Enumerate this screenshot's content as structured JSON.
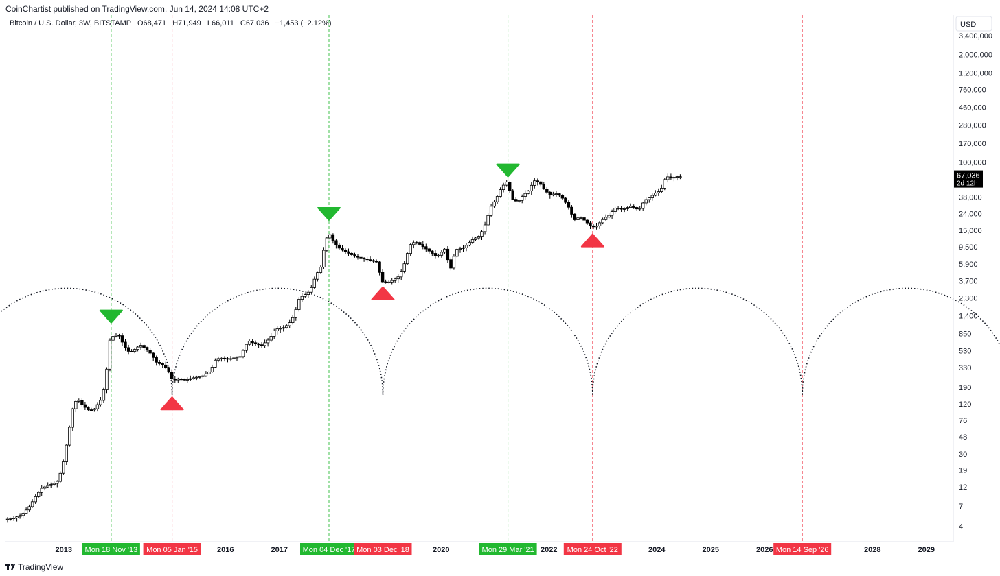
{
  "header": {
    "publisher": "CoinChartist published on TradingView.com, Jun 14, 2024 14:08 UTC+2"
  },
  "footer": {
    "brand": "TradingView",
    "logo_icon": "tradingview-logo-icon"
  },
  "chart_data": {
    "type": "candlestick",
    "title": "Bitcoin / U.S. Dollar, 3W, BITSTAMP",
    "ohlc_text": {
      "open": "O68,471",
      "high": "H71,949",
      "low": "L66,011",
      "close": "C67,036",
      "change": "−1,453 (−2.12%)"
    },
    "currency": "USD",
    "price_scale": "log",
    "x_range": [
      2011.92,
      2029.5
    ],
    "y_range": [
      2.6,
      6000000
    ],
    "y_ticks": [
      "3,400,000",
      "2,000,000",
      "1,200,000",
      "760,000",
      "460,000",
      "280,000",
      "170,000",
      "100,000",
      "38,000",
      "24,000",
      "15,000",
      "9,500",
      "5,900",
      "3,700",
      "2,300",
      "1,400",
      "850",
      "530",
      "330",
      "190",
      "120",
      "76",
      "48",
      "30",
      "19",
      "12",
      "7",
      "4"
    ],
    "x_ticks": [
      {
        "label": "2013",
        "x": 2013.0
      },
      {
        "label": "2016",
        "x": 2016.0
      },
      {
        "label": "2017",
        "x": 2017.0
      },
      {
        "label": "2020",
        "x": 2020.0
      },
      {
        "label": "2022",
        "x": 2022.0
      },
      {
        "label": "2024",
        "x": 2024.0
      },
      {
        "label": "2025",
        "x": 2025.0
      },
      {
        "label": "2026",
        "x": 2026.0
      },
      {
        "label": "2028",
        "x": 2028.0
      },
      {
        "label": "2029",
        "x": 2029.0
      }
    ],
    "last_price": {
      "value": 67036,
      "label": "67,036",
      "countdown": "2d 12h"
    },
    "cycle_markers": [
      {
        "date_label": "Mon 18 Nov '13",
        "x": 2013.88,
        "kind": "top",
        "price": 1150,
        "color": "#22b830"
      },
      {
        "date_label": "Mon 05 Jan '15",
        "x": 2015.01,
        "kind": "bottom",
        "price": 145,
        "color": "#f23645"
      },
      {
        "date_label": "Mon 04 Dec '17",
        "x": 2017.92,
        "kind": "top",
        "price": 20000,
        "color": "#22b830"
      },
      {
        "date_label": "Mon 03 Dec '18",
        "x": 2018.92,
        "kind": "bottom",
        "price": 3100,
        "color": "#f23645"
      },
      {
        "date_label": "Mon 29 Mar '21",
        "x": 2021.24,
        "kind": "top",
        "price": 67000,
        "color": "#22b830"
      },
      {
        "date_label": "Mon 24 Oct '22",
        "x": 2022.81,
        "kind": "bottom",
        "price": 13500,
        "color": "#f23645"
      },
      {
        "date_label": "Mon 14 Sep '26",
        "x": 2026.7,
        "kind": "projection",
        "color": "#f23645"
      }
    ],
    "cycle_arcs": {
      "bottoms": [
        2011.1,
        2015.01,
        2018.92,
        2022.81,
        2026.7
      ],
      "peak_price": 3000,
      "trough_price": 155
    },
    "price_path": [
      {
        "x": 2011.93,
        "p": 4.8
      },
      {
        "x": 2012.1,
        "p": 5.0
      },
      {
        "x": 2012.25,
        "p": 5.5
      },
      {
        "x": 2012.4,
        "p": 7.0
      },
      {
        "x": 2012.5,
        "p": 9.0
      },
      {
        "x": 2012.62,
        "p": 11.5
      },
      {
        "x": 2012.75,
        "p": 12.5
      },
      {
        "x": 2012.9,
        "p": 13.5
      },
      {
        "x": 2013.0,
        "p": 20
      },
      {
        "x": 2013.1,
        "p": 45
      },
      {
        "x": 2013.2,
        "p": 110
      },
      {
        "x": 2013.28,
        "p": 140
      },
      {
        "x": 2013.38,
        "p": 115
      },
      {
        "x": 2013.5,
        "p": 100
      },
      {
        "x": 2013.6,
        "p": 105
      },
      {
        "x": 2013.72,
        "p": 135
      },
      {
        "x": 2013.8,
        "p": 210
      },
      {
        "x": 2013.88,
        "p": 700
      },
      {
        "x": 2013.95,
        "p": 800
      },
      {
        "x": 2014.05,
        "p": 820
      },
      {
        "x": 2014.15,
        "p": 600
      },
      {
        "x": 2014.25,
        "p": 500
      },
      {
        "x": 2014.35,
        "p": 550
      },
      {
        "x": 2014.45,
        "p": 620
      },
      {
        "x": 2014.55,
        "p": 560
      },
      {
        "x": 2014.65,
        "p": 480
      },
      {
        "x": 2014.75,
        "p": 380
      },
      {
        "x": 2014.85,
        "p": 360
      },
      {
        "x": 2014.95,
        "p": 320
      },
      {
        "x": 2015.05,
        "p": 230
      },
      {
        "x": 2015.15,
        "p": 240
      },
      {
        "x": 2015.3,
        "p": 235
      },
      {
        "x": 2015.45,
        "p": 250
      },
      {
        "x": 2015.6,
        "p": 260
      },
      {
        "x": 2015.75,
        "p": 300
      },
      {
        "x": 2015.85,
        "p": 420
      },
      {
        "x": 2015.95,
        "p": 430
      },
      {
        "x": 2016.1,
        "p": 420
      },
      {
        "x": 2016.3,
        "p": 450
      },
      {
        "x": 2016.45,
        "p": 700
      },
      {
        "x": 2016.55,
        "p": 650
      },
      {
        "x": 2016.7,
        "p": 610
      },
      {
        "x": 2016.85,
        "p": 740
      },
      {
        "x": 2016.95,
        "p": 960
      },
      {
        "x": 2017.1,
        "p": 1000
      },
      {
        "x": 2017.2,
        "p": 1100
      },
      {
        "x": 2017.3,
        "p": 1400
      },
      {
        "x": 2017.4,
        "p": 2300
      },
      {
        "x": 2017.5,
        "p": 2500
      },
      {
        "x": 2017.6,
        "p": 2800
      },
      {
        "x": 2017.7,
        "p": 4200
      },
      {
        "x": 2017.8,
        "p": 5500
      },
      {
        "x": 2017.88,
        "p": 11000
      },
      {
        "x": 2017.95,
        "p": 14000
      },
      {
        "x": 2018.05,
        "p": 10500
      },
      {
        "x": 2018.15,
        "p": 9000
      },
      {
        "x": 2018.3,
        "p": 8000
      },
      {
        "x": 2018.45,
        "p": 7200
      },
      {
        "x": 2018.6,
        "p": 6800
      },
      {
        "x": 2018.75,
        "p": 6400
      },
      {
        "x": 2018.85,
        "p": 6200
      },
      {
        "x": 2018.92,
        "p": 3600
      },
      {
        "x": 2019.05,
        "p": 3550
      },
      {
        "x": 2019.15,
        "p": 3800
      },
      {
        "x": 2019.25,
        "p": 4200
      },
      {
        "x": 2019.35,
        "p": 6000
      },
      {
        "x": 2019.45,
        "p": 10000
      },
      {
        "x": 2019.55,
        "p": 11000
      },
      {
        "x": 2019.65,
        "p": 10000
      },
      {
        "x": 2019.8,
        "p": 8500
      },
      {
        "x": 2019.95,
        "p": 7200
      },
      {
        "x": 2020.1,
        "p": 9000
      },
      {
        "x": 2020.2,
        "p": 5000
      },
      {
        "x": 2020.3,
        "p": 8800
      },
      {
        "x": 2020.45,
        "p": 9300
      },
      {
        "x": 2020.6,
        "p": 11500
      },
      {
        "x": 2020.75,
        "p": 13000
      },
      {
        "x": 2020.85,
        "p": 18000
      },
      {
        "x": 2020.95,
        "p": 29000
      },
      {
        "x": 2021.05,
        "p": 36000
      },
      {
        "x": 2021.15,
        "p": 50000
      },
      {
        "x": 2021.25,
        "p": 58000
      },
      {
        "x": 2021.35,
        "p": 36000
      },
      {
        "x": 2021.45,
        "p": 33000
      },
      {
        "x": 2021.55,
        "p": 40000
      },
      {
        "x": 2021.65,
        "p": 45000
      },
      {
        "x": 2021.75,
        "p": 60000
      },
      {
        "x": 2021.85,
        "p": 57000
      },
      {
        "x": 2021.95,
        "p": 46000
      },
      {
        "x": 2022.05,
        "p": 40000
      },
      {
        "x": 2022.15,
        "p": 42000
      },
      {
        "x": 2022.25,
        "p": 39000
      },
      {
        "x": 2022.38,
        "p": 30000
      },
      {
        "x": 2022.5,
        "p": 20000
      },
      {
        "x": 2022.6,
        "p": 22000
      },
      {
        "x": 2022.7,
        "p": 19500
      },
      {
        "x": 2022.82,
        "p": 16500
      },
      {
        "x": 2022.9,
        "p": 16700
      },
      {
        "x": 2023.05,
        "p": 21000
      },
      {
        "x": 2023.15,
        "p": 23000
      },
      {
        "x": 2023.25,
        "p": 28000
      },
      {
        "x": 2023.4,
        "p": 27000
      },
      {
        "x": 2023.55,
        "p": 29500
      },
      {
        "x": 2023.7,
        "p": 26500
      },
      {
        "x": 2023.8,
        "p": 34500
      },
      {
        "x": 2023.9,
        "p": 37500
      },
      {
        "x": 2024.0,
        "p": 42500
      },
      {
        "x": 2024.1,
        "p": 45000
      },
      {
        "x": 2024.2,
        "p": 68000
      },
      {
        "x": 2024.3,
        "p": 64000
      },
      {
        "x": 2024.38,
        "p": 67000
      },
      {
        "x": 2024.45,
        "p": 67036
      }
    ]
  }
}
